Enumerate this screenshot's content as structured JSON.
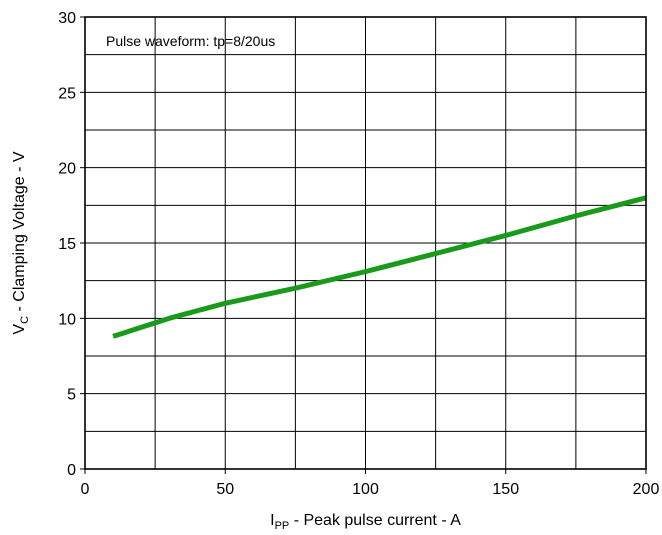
{
  "chart_data": {
    "type": "line",
    "annotation": "Pulse waveform: tp=8/20us",
    "xlabel": {
      "main": "I",
      "sub": "PP",
      "rest": " - Peak pulse current - A"
    },
    "ylabel": {
      "main": "V",
      "sub": "C",
      "rest": " - Clamping Voltage - V"
    },
    "xlim": [
      0,
      200
    ],
    "ylim": [
      0,
      30
    ],
    "xticks": [
      0,
      50,
      100,
      150,
      200
    ],
    "yticks": [
      0,
      5,
      10,
      15,
      20,
      25,
      30
    ],
    "x_grid": [
      0,
      25,
      50,
      75,
      100,
      125,
      150,
      175,
      200
    ],
    "y_grid": [
      0,
      2.5,
      5,
      7.5,
      10,
      12.5,
      15,
      17.5,
      20,
      22.5,
      25,
      27.5,
      30
    ],
    "grid": true,
    "line_color": "#1a9a1a",
    "series": [
      {
        "x": [
          10,
          30,
          50,
          75,
          100,
          125,
          150,
          175,
          200
        ],
        "y": [
          8.8,
          10.0,
          11.0,
          12.0,
          13.1,
          14.3,
          15.5,
          16.8,
          18.0
        ]
      }
    ]
  }
}
